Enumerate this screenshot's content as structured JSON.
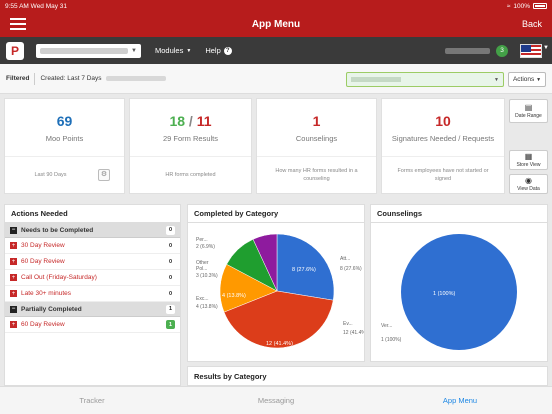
{
  "status_bar": {
    "time": "9:55 AM",
    "date": "Wed May 31",
    "battery": "100%"
  },
  "nav": {
    "title": "App Menu",
    "back_label": "Back"
  },
  "toolbar": {
    "modules_label": "Modules",
    "help_label": "Help",
    "badge_count": "3",
    "logo_letter": "P"
  },
  "filter": {
    "filtered_label": "Filtered",
    "created_label": "Created: Last 7 Days",
    "actions_label": "Actions"
  },
  "kpis": [
    {
      "value": "69",
      "label": "Moo Points",
      "footer": "Last 90 Days",
      "color": "#1e6fb8"
    },
    {
      "value_a": "18",
      "sep": " / ",
      "value_b": "11",
      "label": "29 Form Results",
      "footer": "HR forms completed",
      "color_a": "#4caf50",
      "color_b": "#c62828"
    },
    {
      "value": "1",
      "label": "Counselings",
      "footer": "How many HR forms resulted in a counseling",
      "color": "#c62828"
    },
    {
      "value": "10",
      "label": "Signatures Needed / Requests",
      "footer": "Forms employees have not started or signed",
      "color": "#c62828"
    }
  ],
  "side_buttons": {
    "date_range": "Date Range",
    "store_view": "Store View",
    "view_data": "View Data"
  },
  "actions_needed": {
    "title": "Actions Needed",
    "groups": [
      {
        "label": "Needs to be Completed",
        "count": "0",
        "items": [
          {
            "label": "30 Day Review",
            "count": "0"
          },
          {
            "label": "60 Day Review",
            "count": "0"
          },
          {
            "label": "Call Out (Friday-Saturday)",
            "count": "0"
          },
          {
            "label": "Late 30+ minutes",
            "count": "0"
          }
        ]
      },
      {
        "label": "Partially Completed",
        "count": "1",
        "items": [
          {
            "label": "60 Day Review",
            "count": "1"
          }
        ]
      }
    ]
  },
  "completed_chart": {
    "title": "Completed by Category",
    "chart_data": {
      "type": "pie",
      "slices": [
        {
          "label": "Att...",
          "value": 8,
          "percent": "27.6%",
          "color": "#2f6fd1"
        },
        {
          "label": "Ev...",
          "value": 12,
          "percent": "41.4%",
          "color": "#dc3d1a"
        },
        {
          "label": "Exc...",
          "value": 4,
          "percent": "13.8%",
          "color": "#ff9900"
        },
        {
          "label": "Other Pol...",
          "value": 3,
          "percent": "10.3%",
          "color": "#1f9e2f"
        },
        {
          "label": "Per...",
          "value": 2,
          "percent": "6.9%",
          "color": "#8e1b9e"
        }
      ]
    },
    "labels": {
      "att": "Att...",
      "att_sub": "8 (27.6%)",
      "ev": "Ev...",
      "ev_sub": "12 (41.4%)",
      "exc": "Exc...",
      "exc_sub": "4 (13.8%)",
      "oth_a": "Other",
      "oth_b": "Pol...",
      "oth_sub": "3 (10.3%)",
      "per": "Per...",
      "per_sub": "2 (6.9%)"
    }
  },
  "counselings_chart": {
    "title": "Counselings",
    "chart_data": {
      "type": "pie",
      "slices": [
        {
          "label": "Ver...",
          "value": 1,
          "percent": "100%",
          "color": "#2f6fd1"
        }
      ]
    },
    "labels": {
      "ver": "Ver...",
      "ver_sub": "1 (100%)"
    }
  },
  "results_by_category": {
    "title": "Results by Category"
  },
  "tabs": [
    {
      "label": "Tracker"
    },
    {
      "label": "Messaging"
    },
    {
      "label": "App Menu"
    }
  ]
}
